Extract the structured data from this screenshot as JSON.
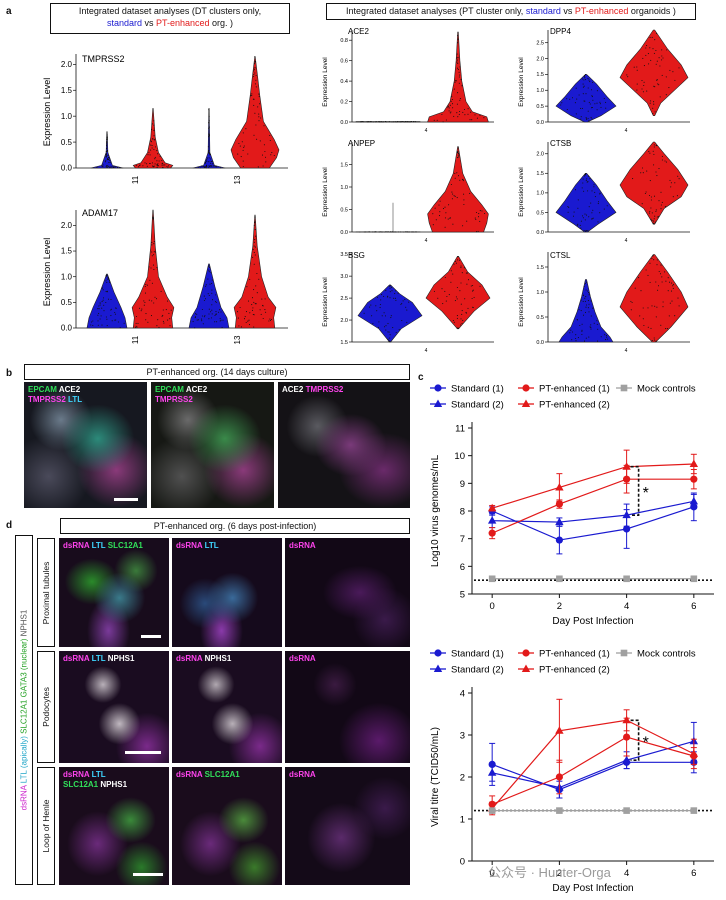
{
  "panel_letters": {
    "a": "a",
    "b": "b",
    "c": "c",
    "d": "d"
  },
  "colors": {
    "standard": "#1a1ad0",
    "pt_enhanced": "#e21a1a",
    "mock": "#a0a0a0"
  },
  "panel_a": {
    "left_title": {
      "line1": "Integrated dataset analyses (DT clusters only,",
      "standard": "standard",
      "vs": " vs ",
      "pt": "PT-enhanced",
      "line2_end": " org. )"
    },
    "right_title": {
      "prefix": "Integrated dataset analyses (PT cluster only, ",
      "standard": "standard",
      "vs": " vs ",
      "pt": "PT-enhanced",
      "suffix": " organoids )"
    },
    "ylabel": "Expression Level",
    "clusters": [
      "11",
      "13"
    ],
    "right_xtick": "4",
    "tmprss2": {
      "gene": "TMPRSS2",
      "ylim": [
        0,
        2.2
      ],
      "ticks": [
        "0.0",
        "0.5",
        "1.0",
        "1.5",
        "2.0"
      ]
    },
    "adam17": {
      "gene": "ADAM17",
      "ylim": [
        0,
        2.3
      ],
      "ticks": [
        "0.0",
        "0.5",
        "1.0",
        "1.5",
        "2.0"
      ]
    },
    "ace2": {
      "gene": "ACE2",
      "ylim": [
        0,
        0.9
      ],
      "ticks": [
        "0.0",
        "0.2",
        "0.4",
        "0.6",
        "0.8"
      ]
    },
    "dpp4": {
      "gene": "DPP4",
      "ylim": [
        0,
        2.9
      ],
      "ticks": [
        "0.0",
        "0.5",
        "1.0",
        "1.5",
        "2.0",
        "2.5"
      ]
    },
    "anpep": {
      "gene": "ANPEP",
      "ylim": [
        0,
        2.0
      ],
      "ticks": [
        "0.0",
        "0.5",
        "1.0",
        "1.5"
      ]
    },
    "ctsb": {
      "gene": "CTSB",
      "ylim": [
        0,
        2.3
      ],
      "ticks": [
        "0.0",
        "0.5",
        "1.0",
        "1.5",
        "2.0"
      ]
    },
    "bsg": {
      "gene": "BSG",
      "ylim": [
        1.5,
        3.55
      ],
      "ticks": [
        "1.5",
        "2.0",
        "2.5",
        "3.0",
        "3.5"
      ]
    },
    "ctsl": {
      "gene": "CTSL",
      "ylim": [
        0,
        1.8
      ],
      "ticks": [
        "0.0",
        "0.5",
        "1.0",
        "1.5"
      ]
    }
  },
  "panel_b": {
    "title": "PT-enhanced org. (14 days culture)",
    "img1": {
      "l1a": "EPCAM",
      "l1b": " ACE2",
      "l2a": "TMPRSS2",
      "l2b": " LTL"
    },
    "img2": {
      "l1a": "EPCAM",
      "l1b": " ACE2",
      "l2a": "TMPRSS2"
    },
    "img3": {
      "l1a": "ACE2",
      "l1b": " TMPRSS2"
    }
  },
  "panel_d": {
    "title": "PT-enhanced org. (6 days post-infection)",
    "side": {
      "dsrna": "dsRNA",
      "ltl": " LTL (apically)",
      "slc": " SLC12A1",
      "gata3": " GATA3 (nuclear)",
      "nphs1": " NPHS1"
    },
    "rows": [
      "Proximal tubules",
      "Podocytes",
      "Loop of Henle"
    ],
    "r1": {
      "c1a": "dsRNA",
      "c1b": " LTL",
      "c1c": " SLC12A1",
      "c2a": "dsRNA",
      "c2b": " LTL",
      "c3": "dsRNA"
    },
    "r2": {
      "c1a": "dsRNA",
      "c1b": " LTL",
      "c1c": " NPHS1",
      "c2a": "dsRNA",
      "c2b": " NPHS1",
      "c3": "dsRNA"
    },
    "r3": {
      "c1a": "dsRNA",
      "c1b": " LTL",
      "c1c": "SLC12A1",
      "c1d": " NPHS1",
      "c2a": "dsRNA",
      "c2b": " SLC12A1",
      "c3": "dsRNA"
    }
  },
  "chart_data": [
    {
      "type": "line",
      "title": "",
      "xlabel": "Day Post Infection",
      "ylabel": "Log10 virus genomes/mL",
      "x": [
        0,
        2,
        4,
        6
      ],
      "xlim": [
        -0.6,
        6.6
      ],
      "ylim": [
        5,
        11
      ],
      "yticks": [
        5,
        6,
        7,
        8,
        9,
        10,
        11
      ],
      "hline": 5.5,
      "significance": "*",
      "legend": {
        "standard1": "Standard (1)",
        "pt1": "PT-enhanced (1)",
        "mock": "Mock controls",
        "standard2": "Standard (2)",
        "pt2": "PT-enhanced (2)"
      },
      "series": [
        {
          "name": "Standard (1)",
          "marker": "circle",
          "color": "#1a1ad0",
          "values": [
            8.0,
            6.95,
            7.35,
            8.15
          ],
          "err": [
            0.15,
            0.5,
            0.7,
            0.5
          ]
        },
        {
          "name": "Standard (2)",
          "marker": "triangle",
          "color": "#1a1ad0",
          "values": [
            7.65,
            7.6,
            7.85,
            8.35
          ],
          "err": [
            0.25,
            0.15,
            0.4,
            0.25
          ]
        },
        {
          "name": "PT-enhanced (1)",
          "marker": "circle",
          "color": "#e21a1a",
          "values": [
            7.2,
            8.25,
            9.15,
            9.15
          ],
          "err": [
            0.2,
            0.15,
            0.5,
            0.35
          ]
        },
        {
          "name": "PT-enhanced (2)",
          "marker": "triangle",
          "color": "#e21a1a",
          "values": [
            8.1,
            8.85,
            9.6,
            9.7
          ],
          "err": [
            0.1,
            0.5,
            0.6,
            0.35
          ]
        },
        {
          "name": "Mock controls",
          "marker": "square",
          "color": "#a0a0a0",
          "values": [
            5.55,
            5.55,
            5.55,
            5.55
          ],
          "err": [
            0,
            0,
            0,
            0
          ]
        }
      ]
    },
    {
      "type": "line",
      "title": "",
      "xlabel": "Day Post Infection",
      "ylabel": "Viral titre (TCID50/mL)",
      "x": [
        0,
        2,
        4,
        6
      ],
      "xlim": [
        -0.6,
        6.6
      ],
      "ylim": [
        0,
        4
      ],
      "yticks": [
        0,
        1,
        2,
        3,
        4
      ],
      "hline": 1.2,
      "significance": "*",
      "legend": {
        "standard1": "Standard (1)",
        "pt1": "PT-enhanced (1)",
        "mock": "Mock controls",
        "standard2": "Standard (2)",
        "pt2": "PT-enhanced (2)"
      },
      "series": [
        {
          "name": "Standard (1)",
          "marker": "circle",
          "color": "#1a1ad0",
          "values": [
            2.3,
            1.7,
            2.35,
            2.35
          ],
          "err": [
            0.5,
            0.2,
            0.15,
            0.25
          ]
        },
        {
          "name": "Standard (2)",
          "marker": "triangle",
          "color": "#1a1ad0",
          "values": [
            2.1,
            1.75,
            2.4,
            2.85
          ],
          "err": [
            0.2,
            0.25,
            0.2,
            0.45
          ]
        },
        {
          "name": "PT-enhanced (1)",
          "marker": "circle",
          "color": "#e21a1a",
          "values": [
            1.35,
            2.0,
            2.95,
            2.5
          ],
          "err": [
            0.2,
            0.4,
            0.45,
            0.2
          ]
        },
        {
          "name": "PT-enhanced (2)",
          "marker": "triangle",
          "color": "#e21a1a",
          "values": [
            1.25,
            3.1,
            3.35,
            2.55
          ],
          "err": [
            0.15,
            0.75,
            0.25,
            0.35
          ]
        },
        {
          "name": "Mock controls",
          "marker": "square",
          "color": "#a0a0a0",
          "values": [
            1.2,
            1.2,
            1.2,
            1.2
          ],
          "err": [
            0,
            0,
            0,
            0
          ]
        }
      ]
    }
  ],
  "watermark": "公众号 · Hunter-Orga"
}
